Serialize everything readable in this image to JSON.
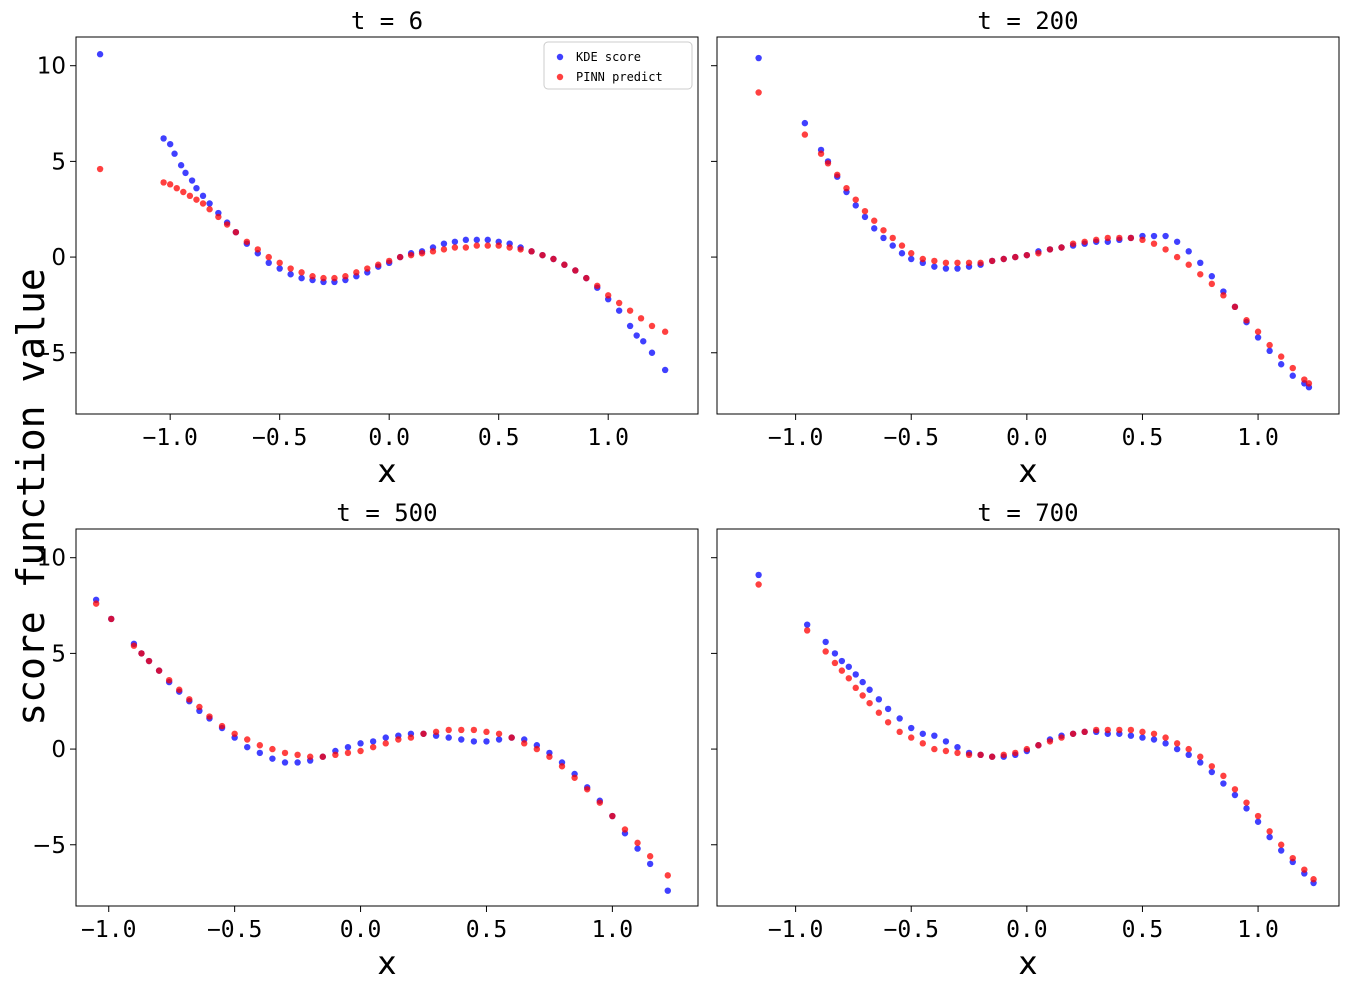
{
  "figure": {
    "ylabel": "score function value",
    "colors": {
      "kde": "#0000ff",
      "pinn": "#ff0000",
      "axis": "#000000"
    }
  },
  "legend": {
    "kde_label": "KDE score",
    "pinn_label": "PINN predict",
    "placement": "upper-right of first panel"
  },
  "chart_data": [
    {
      "type": "scatter",
      "title": "t = 6",
      "xlabel": "x",
      "xlim": [
        -1.43,
        1.41
      ],
      "ylim": [
        -8.2,
        11.5
      ],
      "xticks": [
        -1.0,
        -0.5,
        0.0,
        0.5,
        1.0
      ],
      "xtick_labels": [
        "−1.0",
        "−0.5",
        "0.0",
        "0.5",
        "1.0"
      ],
      "yticks": [
        10,
        5,
        0,
        -5
      ],
      "ytick_labels": [
        "10",
        "5",
        "0",
        "−5"
      ],
      "series": [
        {
          "name": "KDE score",
          "x": [
            -1.32,
            -1.03,
            -1.0,
            -0.98,
            -0.95,
            -0.93,
            -0.9,
            -0.88,
            -0.85,
            -0.82,
            -0.78,
            -0.74,
            -0.7,
            -0.65,
            -0.6,
            -0.55,
            -0.5,
            -0.45,
            -0.4,
            -0.35,
            -0.3,
            -0.25,
            -0.2,
            -0.15,
            -0.1,
            -0.05,
            0.0,
            0.05,
            0.1,
            0.15,
            0.2,
            0.25,
            0.3,
            0.35,
            0.4,
            0.45,
            0.5,
            0.55,
            0.6,
            0.65,
            0.7,
            0.75,
            0.8,
            0.85,
            0.9,
            0.95,
            1.0,
            1.05,
            1.1,
            1.13,
            1.16,
            1.2,
            1.26
          ],
          "values": [
            10.6,
            6.2,
            5.9,
            5.4,
            4.8,
            4.4,
            4.0,
            3.6,
            3.2,
            2.8,
            2.3,
            1.8,
            1.3,
            0.7,
            0.2,
            -0.3,
            -0.6,
            -0.9,
            -1.1,
            -1.2,
            -1.3,
            -1.3,
            -1.2,
            -1.0,
            -0.8,
            -0.5,
            -0.3,
            0.0,
            0.2,
            0.3,
            0.5,
            0.7,
            0.8,
            0.9,
            0.9,
            0.9,
            0.8,
            0.7,
            0.5,
            0.3,
            0.1,
            -0.1,
            -0.4,
            -0.7,
            -1.1,
            -1.6,
            -2.2,
            -2.8,
            -3.6,
            -4.1,
            -4.4,
            -5.0,
            -5.9
          ]
        },
        {
          "name": "PINN predict",
          "x": [
            -1.32,
            -1.03,
            -1.0,
            -0.97,
            -0.94,
            -0.91,
            -0.88,
            -0.85,
            -0.82,
            -0.78,
            -0.74,
            -0.7,
            -0.65,
            -0.6,
            -0.55,
            -0.5,
            -0.45,
            -0.4,
            -0.35,
            -0.3,
            -0.25,
            -0.2,
            -0.15,
            -0.1,
            -0.05,
            0.0,
            0.05,
            0.1,
            0.15,
            0.2,
            0.25,
            0.3,
            0.35,
            0.4,
            0.45,
            0.5,
            0.55,
            0.6,
            0.65,
            0.7,
            0.75,
            0.8,
            0.85,
            0.9,
            0.95,
            1.0,
            1.05,
            1.1,
            1.15,
            1.2,
            1.26
          ],
          "values": [
            4.6,
            3.9,
            3.8,
            3.6,
            3.4,
            3.2,
            3.0,
            2.8,
            2.5,
            2.1,
            1.7,
            1.3,
            0.8,
            0.4,
            0.0,
            -0.3,
            -0.6,
            -0.8,
            -1.0,
            -1.1,
            -1.1,
            -1.0,
            -0.8,
            -0.6,
            -0.4,
            -0.2,
            0.0,
            0.1,
            0.2,
            0.3,
            0.4,
            0.5,
            0.5,
            0.6,
            0.6,
            0.6,
            0.5,
            0.4,
            0.3,
            0.1,
            -0.1,
            -0.4,
            -0.7,
            -1.1,
            -1.5,
            -2.0,
            -2.4,
            -2.8,
            -3.2,
            -3.6,
            -3.9
          ]
        }
      ]
    },
    {
      "type": "scatter",
      "title": "t = 200",
      "xlabel": "x",
      "xlim": [
        -1.34,
        1.35
      ],
      "ylim": [
        -8.2,
        11.5
      ],
      "xticks": [
        -1.0,
        -0.5,
        0.0,
        0.5,
        1.0
      ],
      "xtick_labels": [
        "−1.0",
        "−0.5",
        "0.0",
        "0.5",
        "1.0"
      ],
      "yticks": [
        10,
        5,
        0,
        -5
      ],
      "ytick_labels": [
        "",
        "",
        "",
        ""
      ],
      "series": [
        {
          "name": "KDE score",
          "x": [
            -1.16,
            -0.96,
            -0.89,
            -0.86,
            -0.82,
            -0.78,
            -0.74,
            -0.7,
            -0.66,
            -0.62,
            -0.58,
            -0.54,
            -0.5,
            -0.45,
            -0.4,
            -0.35,
            -0.3,
            -0.25,
            -0.2,
            -0.15,
            -0.1,
            -0.05,
            0.0,
            0.05,
            0.1,
            0.15,
            0.2,
            0.25,
            0.3,
            0.35,
            0.4,
            0.45,
            0.5,
            0.55,
            0.6,
            0.65,
            0.7,
            0.75,
            0.8,
            0.85,
            0.9,
            0.95,
            1.0,
            1.05,
            1.1,
            1.15,
            1.2,
            1.22
          ],
          "values": [
            10.4,
            7.0,
            5.6,
            5.0,
            4.2,
            3.4,
            2.7,
            2.1,
            1.5,
            1.0,
            0.6,
            0.2,
            -0.1,
            -0.3,
            -0.5,
            -0.6,
            -0.6,
            -0.5,
            -0.4,
            -0.2,
            -0.1,
            0.0,
            0.1,
            0.3,
            0.4,
            0.5,
            0.6,
            0.7,
            0.8,
            0.8,
            0.9,
            1.0,
            1.1,
            1.1,
            1.1,
            0.8,
            0.3,
            -0.3,
            -1.0,
            -1.8,
            -2.6,
            -3.4,
            -4.2,
            -4.9,
            -5.6,
            -6.2,
            -6.6,
            -6.8
          ]
        },
        {
          "name": "PINN predict",
          "x": [
            -1.16,
            -0.96,
            -0.89,
            -0.86,
            -0.82,
            -0.78,
            -0.74,
            -0.7,
            -0.66,
            -0.62,
            -0.58,
            -0.54,
            -0.5,
            -0.45,
            -0.4,
            -0.35,
            -0.3,
            -0.25,
            -0.2,
            -0.15,
            -0.1,
            -0.05,
            0.0,
            0.05,
            0.1,
            0.15,
            0.2,
            0.25,
            0.3,
            0.35,
            0.4,
            0.45,
            0.5,
            0.55,
            0.6,
            0.65,
            0.7,
            0.75,
            0.8,
            0.85,
            0.9,
            0.95,
            1.0,
            1.05,
            1.1,
            1.15,
            1.2,
            1.22
          ],
          "values": [
            8.6,
            6.4,
            5.4,
            4.9,
            4.3,
            3.6,
            3.0,
            2.4,
            1.9,
            1.4,
            1.0,
            0.6,
            0.2,
            -0.1,
            -0.2,
            -0.3,
            -0.3,
            -0.3,
            -0.3,
            -0.2,
            -0.1,
            0.0,
            0.1,
            0.2,
            0.4,
            0.5,
            0.7,
            0.8,
            0.9,
            1.0,
            1.0,
            1.0,
            0.9,
            0.7,
            0.4,
            0.0,
            -0.4,
            -0.9,
            -1.4,
            -2.0,
            -2.6,
            -3.3,
            -3.9,
            -4.6,
            -5.2,
            -5.8,
            -6.4,
            -6.6
          ]
        }
      ]
    },
    {
      "type": "scatter",
      "title": "t = 500",
      "xlabel": "x",
      "xlim": [
        -1.13,
        1.34
      ],
      "ylim": [
        -8.2,
        11.5
      ],
      "xticks": [
        -1.0,
        -0.5,
        0.0,
        0.5,
        1.0
      ],
      "xtick_labels": [
        "−1.0",
        "−0.5",
        "0.0",
        "0.5",
        "1.0"
      ],
      "yticks": [
        10,
        5,
        0,
        -5
      ],
      "ytick_labels": [
        "10",
        "5",
        "0",
        "−5"
      ],
      "series": [
        {
          "name": "KDE score",
          "x": [
            -1.05,
            -0.99,
            -0.9,
            -0.87,
            -0.84,
            -0.8,
            -0.76,
            -0.72,
            -0.68,
            -0.64,
            -0.6,
            -0.55,
            -0.5,
            -0.45,
            -0.4,
            -0.35,
            -0.3,
            -0.25,
            -0.2,
            -0.15,
            -0.1,
            -0.05,
            0.0,
            0.05,
            0.1,
            0.15,
            0.2,
            0.25,
            0.3,
            0.35,
            0.4,
            0.45,
            0.5,
            0.55,
            0.6,
            0.65,
            0.7,
            0.75,
            0.8,
            0.85,
            0.9,
            0.95,
            1.0,
            1.05,
            1.1,
            1.15,
            1.22
          ],
          "values": [
            7.8,
            6.8,
            5.5,
            5.0,
            4.6,
            4.1,
            3.5,
            3.0,
            2.5,
            2.0,
            1.6,
            1.1,
            0.6,
            0.1,
            -0.2,
            -0.5,
            -0.7,
            -0.7,
            -0.6,
            -0.4,
            -0.1,
            0.1,
            0.3,
            0.4,
            0.6,
            0.7,
            0.8,
            0.8,
            0.7,
            0.6,
            0.5,
            0.4,
            0.4,
            0.5,
            0.6,
            0.5,
            0.2,
            -0.2,
            -0.7,
            -1.3,
            -2.0,
            -2.7,
            -3.5,
            -4.4,
            -5.2,
            -6.0,
            -7.4
          ]
        },
        {
          "name": "PINN predict",
          "x": [
            -1.05,
            -0.99,
            -0.9,
            -0.87,
            -0.84,
            -0.8,
            -0.76,
            -0.72,
            -0.68,
            -0.64,
            -0.6,
            -0.55,
            -0.5,
            -0.45,
            -0.4,
            -0.35,
            -0.3,
            -0.25,
            -0.2,
            -0.15,
            -0.1,
            -0.05,
            0.0,
            0.05,
            0.1,
            0.15,
            0.2,
            0.25,
            0.3,
            0.35,
            0.4,
            0.45,
            0.5,
            0.55,
            0.6,
            0.65,
            0.7,
            0.75,
            0.8,
            0.85,
            0.9,
            0.95,
            1.0,
            1.05,
            1.1,
            1.15,
            1.22
          ],
          "values": [
            7.6,
            6.8,
            5.4,
            5.0,
            4.6,
            4.1,
            3.6,
            3.1,
            2.6,
            2.2,
            1.7,
            1.2,
            0.8,
            0.5,
            0.2,
            0.0,
            -0.2,
            -0.3,
            -0.4,
            -0.4,
            -0.3,
            -0.2,
            -0.1,
            0.1,
            0.3,
            0.5,
            0.6,
            0.8,
            0.9,
            1.0,
            1.0,
            1.0,
            0.9,
            0.8,
            0.6,
            0.3,
            0.0,
            -0.4,
            -0.9,
            -1.5,
            -2.1,
            -2.8,
            -3.5,
            -4.2,
            -4.9,
            -5.6,
            -6.6
          ]
        }
      ]
    },
    {
      "type": "scatter",
      "title": "t = 700",
      "xlabel": "x",
      "xlim": [
        -1.34,
        1.35
      ],
      "ylim": [
        -8.2,
        11.5
      ],
      "xticks": [
        -1.0,
        -0.5,
        0.0,
        0.5,
        1.0
      ],
      "xtick_labels": [
        "−1.0",
        "−0.5",
        "0.0",
        "0.5",
        "1.0"
      ],
      "yticks": [
        10,
        5,
        0,
        -5
      ],
      "ytick_labels": [
        "",
        "",
        "",
        ""
      ],
      "series": [
        {
          "name": "KDE score",
          "x": [
            -1.16,
            -0.95,
            -0.87,
            -0.83,
            -0.8,
            -0.77,
            -0.74,
            -0.71,
            -0.68,
            -0.64,
            -0.6,
            -0.55,
            -0.5,
            -0.45,
            -0.4,
            -0.35,
            -0.3,
            -0.25,
            -0.2,
            -0.15,
            -0.1,
            -0.05,
            0.0,
            0.05,
            0.1,
            0.15,
            0.2,
            0.25,
            0.3,
            0.35,
            0.4,
            0.45,
            0.5,
            0.55,
            0.6,
            0.65,
            0.7,
            0.75,
            0.8,
            0.85,
            0.9,
            0.95,
            1.0,
            1.05,
            1.1,
            1.15,
            1.2,
            1.24
          ],
          "values": [
            9.1,
            6.5,
            5.6,
            5.0,
            4.6,
            4.3,
            3.9,
            3.5,
            3.1,
            2.6,
            2.1,
            1.6,
            1.1,
            0.8,
            0.7,
            0.4,
            0.1,
            -0.2,
            -0.3,
            -0.4,
            -0.4,
            -0.3,
            -0.1,
            0.2,
            0.5,
            0.7,
            0.8,
            0.9,
            0.9,
            0.8,
            0.8,
            0.7,
            0.6,
            0.5,
            0.3,
            0.0,
            -0.3,
            -0.7,
            -1.2,
            -1.8,
            -2.4,
            -3.1,
            -3.8,
            -4.6,
            -5.3,
            -5.9,
            -6.5,
            -7.0
          ]
        },
        {
          "name": "PINN predict",
          "x": [
            -1.16,
            -0.95,
            -0.87,
            -0.83,
            -0.8,
            -0.77,
            -0.74,
            -0.71,
            -0.68,
            -0.64,
            -0.6,
            -0.55,
            -0.5,
            -0.45,
            -0.4,
            -0.35,
            -0.3,
            -0.25,
            -0.2,
            -0.15,
            -0.1,
            -0.05,
            0.0,
            0.05,
            0.1,
            0.15,
            0.2,
            0.25,
            0.3,
            0.35,
            0.4,
            0.45,
            0.5,
            0.55,
            0.6,
            0.65,
            0.7,
            0.75,
            0.8,
            0.85,
            0.9,
            0.95,
            1.0,
            1.05,
            1.1,
            1.15,
            1.2,
            1.24
          ],
          "values": [
            8.6,
            6.2,
            5.1,
            4.5,
            4.1,
            3.7,
            3.2,
            2.8,
            2.4,
            1.9,
            1.4,
            0.9,
            0.6,
            0.3,
            0.0,
            -0.1,
            -0.2,
            -0.3,
            -0.3,
            -0.4,
            -0.3,
            -0.2,
            0.0,
            0.2,
            0.4,
            0.6,
            0.8,
            0.9,
            1.0,
            1.0,
            1.0,
            1.0,
            0.9,
            0.8,
            0.6,
            0.3,
            0.0,
            -0.4,
            -0.9,
            -1.4,
            -2.1,
            -2.8,
            -3.5,
            -4.3,
            -5.0,
            -5.7,
            -6.3,
            -6.8
          ]
        }
      ]
    }
  ]
}
